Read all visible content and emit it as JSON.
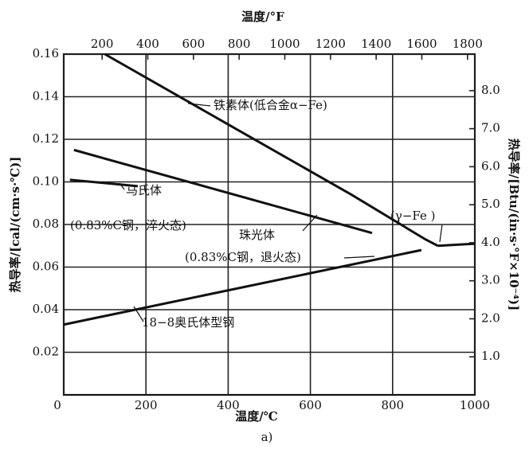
{
  "chart_data": {
    "type": "line",
    "x_label": "温度/℃",
    "x2_label": "温度/°F",
    "y_label": "热导率/[cal/(cm·s·℃)]",
    "y2_label": "热导率/[Btu/(in·s·°F×10⁻⁴)]",
    "xlim": [
      0,
      1000
    ],
    "xticks": [
      0,
      200,
      400,
      600,
      800,
      1000
    ],
    "x2lim": [
      32,
      1832
    ],
    "x2ticks": [
      200,
      400,
      600,
      800,
      1000,
      1200,
      1400,
      1600,
      1800
    ],
    "ylim": [
      0,
      0.16
    ],
    "yticks": [
      0.02,
      0.04,
      0.06,
      0.08,
      {
        "value": 0.1,
        "label": "0.10"
      },
      0.12,
      0.14,
      0.16
    ],
    "y2lim": [
      0,
      8.96
    ],
    "y2ticks": [
      {
        "value": 1,
        "label": "1.0"
      },
      {
        "value": 2,
        "label": "2.0"
      },
      {
        "value": 3,
        "label": "3.0"
      },
      {
        "value": 4,
        "label": "4.0"
      },
      {
        "value": 5,
        "label": "5.0"
      },
      {
        "value": 6,
        "label": "6.0"
      },
      {
        "value": 7,
        "label": "7.0"
      },
      {
        "value": 8,
        "label": "8.0"
      }
    ],
    "grid": true,
    "series": [
      {
        "name": "铁素体(低合金α−Fe)",
        "color": "#111111",
        "x": [
          100,
          400,
          700,
          880,
          910
        ],
        "values": [
          0.16,
          0.127,
          0.094,
          0.073,
          0.07
        ]
      },
      {
        "name": "(γ−Fe )",
        "color": "#111111",
        "x": [
          910,
          1000
        ],
        "values": [
          0.07,
          0.071
        ]
      },
      {
        "name": "马氏体",
        "color": "#111111",
        "x": [
          15,
          180
        ],
        "values": [
          0.101,
          0.098
        ]
      },
      {
        "name": "珠光体",
        "color": "#111111",
        "x": [
          25,
          750
        ],
        "values": [
          0.115,
          0.076
        ]
      },
      {
        "name": "18−8奥氏体型钢",
        "color": "#111111",
        "x": [
          0,
          870
        ],
        "values": [
          0.033,
          0.068
        ]
      }
    ],
    "annotations": [
      "(0.83%C钢，淬火态)",
      "(0.83%C钢，退火态)"
    ],
    "caption": "a)"
  }
}
